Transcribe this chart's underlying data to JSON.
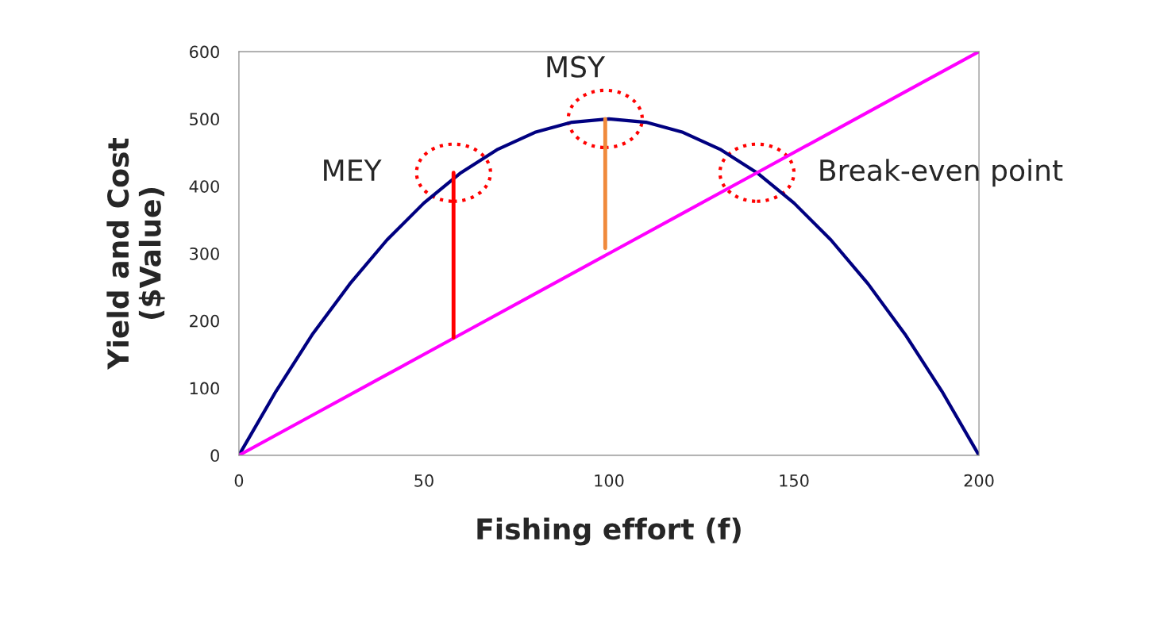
{
  "chart_data": {
    "type": "line",
    "xlabel": "Fishing effort (f)",
    "ylabel": "Yield and Cost\n($Value)",
    "xlim": [
      0,
      200
    ],
    "xticks": [
      0,
      50,
      100,
      150,
      200
    ],
    "ylim": [
      0,
      600
    ],
    "yticks": [
      0,
      100,
      200,
      300,
      400,
      500,
      600
    ],
    "grid": false,
    "legend": false,
    "marker": "none",
    "line_style": "solid",
    "series": [
      {
        "color": "#000080",
        "x": [
          0,
          10,
          20,
          30,
          40,
          50,
          60,
          70,
          80,
          90,
          100,
          110,
          120,
          130,
          140,
          150,
          160,
          170,
          180,
          190,
          200
        ],
        "values": [
          0,
          95,
          181,
          255,
          320,
          375,
          420,
          455,
          480,
          495,
          500,
          495,
          480,
          455,
          420,
          375,
          320,
          255,
          180,
          95,
          0
        ]
      },
      {
        "color": "#ff00ff",
        "x": [
          0,
          20,
          40,
          60,
          80,
          100,
          120,
          140,
          160,
          180,
          200
        ],
        "values": [
          0,
          60,
          120,
          180,
          240,
          300,
          360,
          420,
          480,
          540,
          600
        ]
      },
      {
        "color": "#ff0000",
        "x": [
          58,
          58
        ],
        "values": [
          175,
          420
        ]
      },
      {
        "color": "#f08a3c",
        "x": [
          99,
          99
        ],
        "values": [
          308,
          500
        ]
      }
    ],
    "annotations": [
      {
        "text": "MEY",
        "x": 58,
        "y": 420
      },
      {
        "text": "MSY",
        "x": 99,
        "y": 500
      },
      {
        "text": "Break-even point",
        "x": 140,
        "y": 420
      }
    ]
  }
}
